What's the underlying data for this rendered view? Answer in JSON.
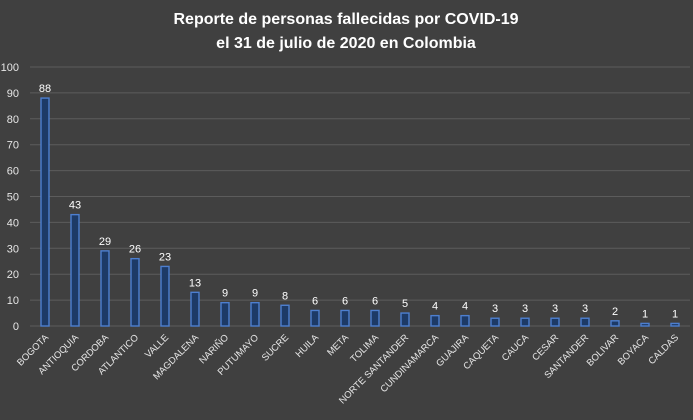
{
  "chart_data": {
    "type": "bar",
    "title_lines": [
      "Reporte de personas fallecidas por COVID-19",
      "el 31 de julio de 2020 en Colombia"
    ],
    "categories": [
      "BOGOTA",
      "ANTIOQUIA",
      "CORDOBA",
      "ATLANTICO",
      "VALLE",
      "MAGDALENA",
      "NARIÑO",
      "PUTUMAYO",
      "SUCRE",
      "HUILA",
      "META",
      "TOLIMA",
      "NORTE SANTANDER",
      "CUNDINAMARCA",
      "GUAJIRA",
      "CAQUETA",
      "CAUCA",
      "CESAR",
      "SANTANDER",
      "BOLIVAR",
      "BOYACA",
      "CALDAS"
    ],
    "values": [
      88,
      43,
      29,
      26,
      23,
      13,
      9,
      9,
      8,
      6,
      6,
      6,
      5,
      4,
      4,
      3,
      3,
      3,
      3,
      2,
      1,
      1
    ],
    "ylim": [
      0,
      100
    ],
    "yticks": [
      "0",
      "10",
      "20",
      "30",
      "40",
      "50",
      "60",
      "70",
      "80",
      "90",
      "100"
    ],
    "grid": true,
    "data_labels": true,
    "colors": {
      "background": "#404040",
      "bar_fill": "#1d3a66",
      "bar_edge": "#4d7fd0",
      "grid": "#5c5c5c",
      "text": "#e6e6e6"
    }
  }
}
